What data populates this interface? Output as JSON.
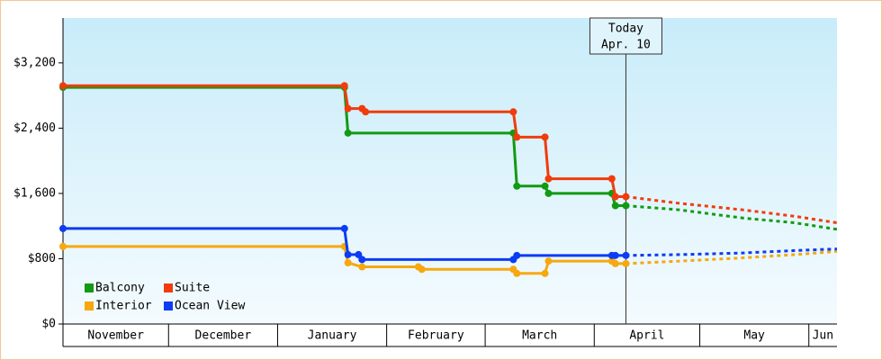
{
  "chart_data": {
    "type": "line",
    "xlim": [
      0,
      220
    ],
    "ylim": [
      0,
      3750
    ],
    "xticks": [
      {
        "value": 0,
        "label": "November"
      },
      {
        "value": 30,
        "label": "December"
      },
      {
        "value": 61,
        "label": "January"
      },
      {
        "value": 92,
        "label": "February"
      },
      {
        "value": 120,
        "label": "March"
      },
      {
        "value": 151,
        "label": "April"
      },
      {
        "value": 181,
        "label": "May"
      },
      {
        "value": 212,
        "label": "Jun"
      }
    ],
    "yticks": [
      {
        "value": 0,
        "label": "$0"
      },
      {
        "value": 800,
        "label": "$800"
      },
      {
        "value": 1600,
        "label": "$1,600"
      },
      {
        "value": 2400,
        "label": "$2,400"
      },
      {
        "value": 3200,
        "label": "$3,200"
      }
    ],
    "today": {
      "x": 160,
      "label": "Today",
      "date": "Apr. 10"
    },
    "series": [
      {
        "name": "Balcony",
        "color": "#129a12",
        "x": [
          0,
          80,
          81,
          128,
          129,
          137,
          138,
          156,
          157,
          160
        ],
        "values": [
          2900,
          2900,
          2340,
          2340,
          1690,
          1690,
          1600,
          1600,
          1450,
          1450
        ],
        "projected_x": [
          160,
          175,
          193,
          208,
          220
        ],
        "projected_values": [
          1450,
          1400,
          1300,
          1240,
          1160
        ]
      },
      {
        "name": "Suite",
        "color": "#f03c0c",
        "x": [
          0,
          80,
          81,
          85,
          86,
          128,
          129,
          137,
          138,
          156,
          157,
          160
        ],
        "values": [
          2920,
          2920,
          2640,
          2640,
          2600,
          2600,
          2290,
          2290,
          1780,
          1780,
          1560,
          1560
        ],
        "projected_x": [
          160,
          175,
          193,
          208,
          220
        ],
        "projected_values": [
          1560,
          1480,
          1400,
          1320,
          1240
        ]
      },
      {
        "name": "Interior",
        "color": "#f6a80e",
        "x": [
          0,
          80,
          81,
          85,
          101,
          102,
          128,
          129,
          137,
          138,
          156,
          157,
          160
        ],
        "values": [
          950,
          950,
          750,
          700,
          700,
          670,
          670,
          620,
          620,
          770,
          770,
          740,
          740
        ],
        "projected_x": [
          160,
          175,
          193,
          208,
          220
        ],
        "projected_values": [
          740,
          770,
          810,
          850,
          890
        ]
      },
      {
        "name": "Ocean View",
        "color": "#0c3cf4",
        "x": [
          0,
          80,
          81,
          84,
          85,
          128,
          129,
          156,
          157,
          160
        ],
        "values": [
          1170,
          1170,
          850,
          850,
          790,
          790,
          840,
          840,
          840,
          840
        ],
        "projected_x": [
          160,
          175,
          193,
          208,
          220
        ],
        "projected_values": [
          840,
          850,
          870,
          900,
          920
        ]
      }
    ]
  }
}
